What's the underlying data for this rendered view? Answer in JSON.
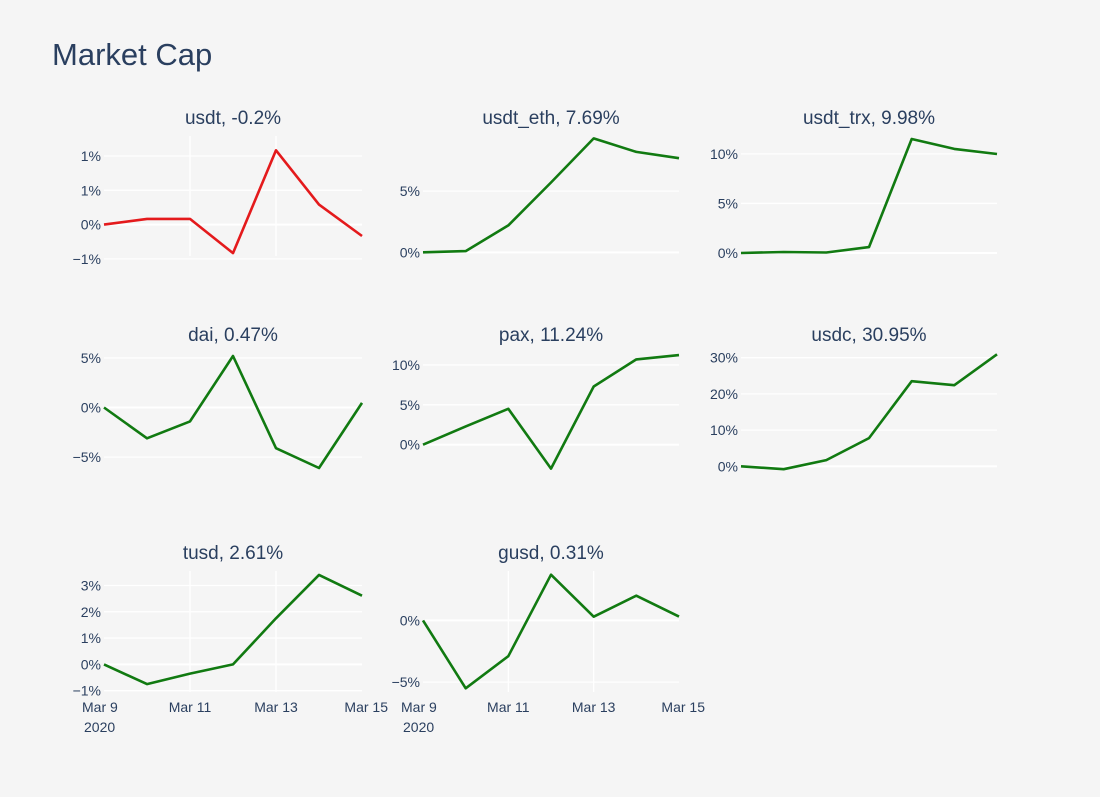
{
  "title": "Market Cap",
  "colors": {
    "up": "#117a11",
    "down": "#e41a1c",
    "text": "#2a3f5f",
    "background": "#f5f5f5",
    "grid": "#ffffff"
  },
  "chart_data": [
    {
      "type": "line",
      "title": "usdt, -0.2%",
      "color": "#e41a1c",
      "x": [
        "2020-03-09",
        "2020-03-10",
        "2020-03-11",
        "2020-03-12",
        "2020-03-13",
        "2020-03-14",
        "2020-03-15"
      ],
      "values": [
        0,
        0.1,
        0.1,
        -0.5,
        1.3,
        0.35,
        -0.2
      ],
      "ylim": [
        -0.55,
        1.55
      ],
      "yticks": [
        {
          "v": 1.2,
          "label": "1%"
        },
        {
          "v": 0.6,
          "label": "1%"
        },
        {
          "v": 0,
          "label": "0%"
        },
        {
          "v": -0.6,
          "label": "−1%"
        }
      ],
      "xgrid": true
    },
    {
      "type": "line",
      "title": "usdt_eth, 7.69%",
      "color": "#117a11",
      "x": [
        "2020-03-09",
        "2020-03-10",
        "2020-03-11",
        "2020-03-12",
        "2020-03-13",
        "2020-03-14",
        "2020-03-15"
      ],
      "values": [
        0,
        0.1,
        2.2,
        5.7,
        9.3,
        8.2,
        7.69
      ],
      "ylim": [
        -0.3,
        9.5
      ],
      "yticks": [
        {
          "v": 5,
          "label": "5%"
        },
        {
          "v": 0,
          "label": "0%"
        }
      ]
    },
    {
      "type": "line",
      "title": "usdt_trx, 9.98%",
      "color": "#117a11",
      "x": [
        "2020-03-09",
        "2020-03-10",
        "2020-03-11",
        "2020-03-12",
        "2020-03-13",
        "2020-03-14",
        "2020-03-15"
      ],
      "values": [
        0,
        0.1,
        0.05,
        0.6,
        11.5,
        10.5,
        9.98
      ],
      "ylim": [
        -0.3,
        11.8
      ],
      "yticks": [
        {
          "v": 10,
          "label": "10%"
        },
        {
          "v": 5,
          "label": "5%"
        },
        {
          "v": 0,
          "label": "0%"
        }
      ]
    },
    {
      "type": "line",
      "title": "dai, 0.47%",
      "color": "#117a11",
      "x": [
        "2020-03-09",
        "2020-03-10",
        "2020-03-11",
        "2020-03-12",
        "2020-03-13",
        "2020-03-14",
        "2020-03-15"
      ],
      "values": [
        0,
        -3.1,
        -1.4,
        5.2,
        -4.1,
        -6.1,
        0.47
      ],
      "ylim": [
        -6.4,
        5.5
      ],
      "yticks": [
        {
          "v": 5,
          "label": "5%"
        },
        {
          "v": 0,
          "label": "0%"
        },
        {
          "v": -5,
          "label": "−5%"
        }
      ]
    },
    {
      "type": "line",
      "title": "pax, 11.24%",
      "color": "#117a11",
      "x": [
        "2020-03-09",
        "2020-03-10",
        "2020-03-11",
        "2020-03-12",
        "2020-03-13",
        "2020-03-14",
        "2020-03-15"
      ],
      "values": [
        0,
        2.3,
        4.5,
        -3.0,
        7.3,
        10.7,
        11.24
      ],
      "ylim": [
        -3.3,
        11.5
      ],
      "yticks": [
        {
          "v": 10,
          "label": "10%"
        },
        {
          "v": 5,
          "label": "5%"
        },
        {
          "v": 0,
          "label": "0%"
        }
      ]
    },
    {
      "type": "line",
      "title": "usdc, 30.95%",
      "color": "#117a11",
      "x": [
        "2020-03-09",
        "2020-03-10",
        "2020-03-11",
        "2020-03-12",
        "2020-03-13",
        "2020-03-14",
        "2020-03-15"
      ],
      "values": [
        0,
        -0.8,
        1.7,
        7.8,
        23.5,
        22.4,
        30.95
      ],
      "ylim": [
        -1.3,
        31.3
      ],
      "yticks": [
        {
          "v": 30,
          "label": "30%"
        },
        {
          "v": 20,
          "label": "20%"
        },
        {
          "v": 10,
          "label": "10%"
        },
        {
          "v": 0,
          "label": "0%"
        }
      ]
    },
    {
      "type": "line",
      "title": "tusd, 2.61%",
      "color": "#117a11",
      "x": [
        "2020-03-09",
        "2020-03-10",
        "2020-03-11",
        "2020-03-12",
        "2020-03-13",
        "2020-03-14",
        "2020-03-15"
      ],
      "values": [
        0,
        -0.75,
        -0.35,
        0,
        1.75,
        3.4,
        2.61
      ],
      "ylim": [
        -1.05,
        3.55
      ],
      "yticks": [
        {
          "v": 3,
          "label": "3%"
        },
        {
          "v": 2,
          "label": "2%"
        },
        {
          "v": 1,
          "label": "1%"
        },
        {
          "v": 0,
          "label": "0%"
        },
        {
          "v": -1,
          "label": "−1%"
        }
      ],
      "xticks": [
        {
          "x": "2020-03-09",
          "label": "Mar 9",
          "sub": "2020"
        },
        {
          "x": "2020-03-11",
          "label": "Mar 11"
        },
        {
          "x": "2020-03-13",
          "label": "Mar 13"
        },
        {
          "x": "2020-03-15",
          "label": "Mar 15"
        }
      ]
    },
    {
      "type": "line",
      "title": "gusd, 0.31%",
      "color": "#117a11",
      "x": [
        "2020-03-09",
        "2020-03-10",
        "2020-03-11",
        "2020-03-12",
        "2020-03-13",
        "2020-03-14",
        "2020-03-15"
      ],
      "values": [
        0,
        -5.5,
        -2.9,
        3.7,
        0.3,
        2.0,
        0.31
      ],
      "ylim": [
        -5.8,
        4.0
      ],
      "yticks": [
        {
          "v": 0,
          "label": "0%"
        },
        {
          "v": -5,
          "label": "−5%"
        }
      ],
      "xticks": [
        {
          "x": "2020-03-09",
          "label": "Mar 9",
          "sub": "2020"
        },
        {
          "x": "2020-03-11",
          "label": "Mar 11"
        },
        {
          "x": "2020-03-13",
          "label": "Mar 13"
        },
        {
          "x": "2020-03-15",
          "label": "Mar 15"
        }
      ]
    }
  ]
}
